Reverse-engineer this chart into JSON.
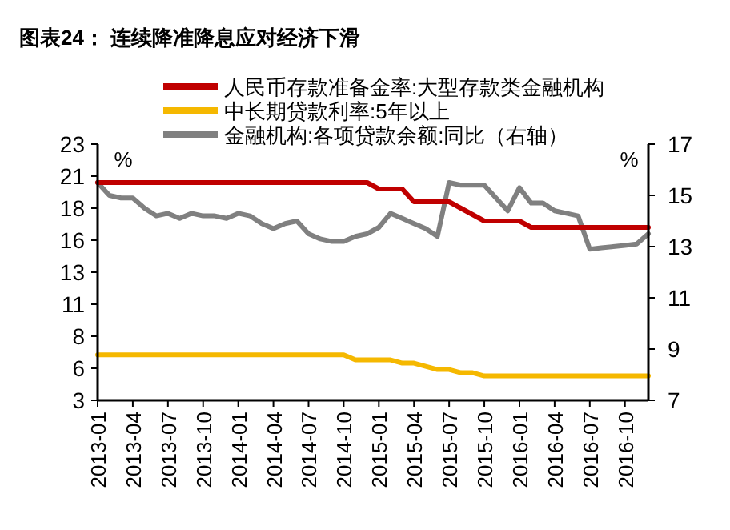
{
  "chart_data": {
    "type": "line",
    "title": "图表24：  连续降准降息应对经济下滑",
    "ylabel": "%",
    "y2label": "%",
    "x": [
      "2013-01",
      "2013-02",
      "2013-03",
      "2013-04",
      "2013-05",
      "2013-06",
      "2013-07",
      "2013-08",
      "2013-09",
      "2013-10",
      "2013-11",
      "2013-12",
      "2014-01",
      "2014-02",
      "2014-03",
      "2014-04",
      "2014-05",
      "2014-06",
      "2014-07",
      "2014-08",
      "2014-09",
      "2014-10",
      "2014-11",
      "2014-12",
      "2015-01",
      "2015-02",
      "2015-03",
      "2015-04",
      "2015-05",
      "2015-06",
      "2015-07",
      "2015-08",
      "2015-09",
      "2015-10",
      "2015-11",
      "2015-12",
      "2016-01",
      "2016-02",
      "2016-03",
      "2016-04",
      "2016-05",
      "2016-06",
      "2016-07",
      "2016-08",
      "2016-09",
      "2016-10",
      "2016-11",
      "2016-12"
    ],
    "series": [
      {
        "name": "人民币存款准备金率:大型存款类金融机构",
        "color": "#c00000",
        "values": [
          20,
          20,
          20,
          20,
          20,
          20,
          20,
          20,
          20,
          20,
          20,
          20,
          20,
          20,
          20,
          20,
          20,
          20,
          20,
          20,
          20,
          20,
          20,
          20,
          19.5,
          19.5,
          19.5,
          18.5,
          18.5,
          18.5,
          18.5,
          18,
          17.5,
          17,
          17,
          17,
          17,
          16.5,
          16.5,
          16.5,
          16.5,
          16.5,
          16.5,
          16.5,
          16.5,
          16.5,
          16.5,
          16.5
        ]
      },
      {
        "name": "中长期贷款利率:5年以上",
        "color": "#f5b800",
        "values": [
          6.55,
          6.55,
          6.55,
          6.55,
          6.55,
          6.55,
          6.55,
          6.55,
          6.55,
          6.55,
          6.55,
          6.55,
          6.55,
          6.55,
          6.55,
          6.55,
          6.55,
          6.55,
          6.55,
          6.55,
          6.55,
          6.55,
          6.15,
          6.15,
          6.15,
          6.15,
          5.9,
          5.9,
          5.65,
          5.4,
          5.4,
          5.15,
          5.15,
          4.9,
          4.9,
          4.9,
          4.9,
          4.9,
          4.9,
          4.9,
          4.9,
          4.9,
          4.9,
          4.9,
          4.9,
          4.9,
          4.9,
          4.9
        ]
      },
      {
        "name": "金融机构:各项贷款余额:同比（右轴）",
        "color": "#808080",
        "axis": "y2",
        "values": [
          15.5,
          15.0,
          14.9,
          14.9,
          14.5,
          14.2,
          14.3,
          14.1,
          14.3,
          14.2,
          14.2,
          14.1,
          14.3,
          14.2,
          13.9,
          13.7,
          13.9,
          14.0,
          13.5,
          13.3,
          13.2,
          13.2,
          13.4,
          13.5,
          13.75,
          14.3,
          14.1,
          13.9,
          13.7,
          13.4,
          15.5,
          15.4,
          15.4,
          15.4,
          14.9,
          14.4,
          15.3,
          14.7,
          14.7,
          14.4,
          14.3,
          14.2,
          12.9,
          12.95,
          13.0,
          13.05,
          13.1,
          13.5
        ]
      }
    ],
    "xlim": [
      "2013-01",
      "2016-12"
    ],
    "xticks": [
      "2013-01",
      "2013-04",
      "2013-07",
      "2013-10",
      "2014-01",
      "2014-04",
      "2014-07",
      "2014-10",
      "2015-01",
      "2015-04",
      "2015-07",
      "2015-10",
      "2016-01",
      "2016-04",
      "2016-07",
      "2016-10"
    ],
    "ylim": [
      3,
      23
    ],
    "yticks": [
      3,
      {
        "value": 5.5,
        "label": "6"
      },
      8,
      {
        "value": 10.5,
        "label": "11"
      },
      13,
      {
        "value": 15.5,
        "label": "16"
      },
      18,
      {
        "value": 20.5,
        "label": "21"
      },
      23
    ],
    "y2lim": [
      7,
      17
    ],
    "y2ticks": [
      7,
      9,
      11,
      13,
      15,
      17
    ],
    "legend": "top",
    "grid": false,
    "marker": "none",
    "line_style": "solid"
  }
}
